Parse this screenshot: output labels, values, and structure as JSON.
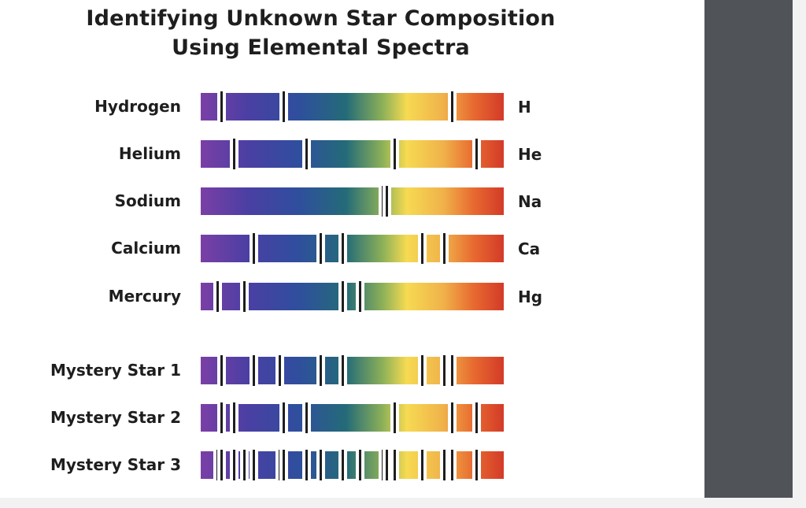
{
  "title_line1": "Identifying Unknown Star Composition",
  "title_line2": "Using Elemental Spectra",
  "elements": [
    {
      "name": "Hydrogen",
      "symbol": "H",
      "lines": [
        0.07,
        0.275,
        0.83
      ]
    },
    {
      "name": "Helium",
      "symbol": "He",
      "lines": [
        0.11,
        0.35,
        0.64,
        0.91
      ]
    },
    {
      "name": "Sodium",
      "symbol": "Na",
      "lines": [
        0.6,
        0.615
      ]
    },
    {
      "name": "Calcium",
      "symbol": "Ca",
      "lines": [
        0.175,
        0.395,
        0.47,
        0.73,
        0.805
      ]
    },
    {
      "name": "Mercury",
      "symbol": "Hg",
      "lines": [
        0.055,
        0.145,
        0.47,
        0.525
      ]
    }
  ],
  "stars": [
    {
      "name": "Mystery Star 1",
      "lines": [
        0.07,
        0.175,
        0.26,
        0.395,
        0.47,
        0.73,
        0.805,
        0.83
      ]
    },
    {
      "name": "Mystery Star 2",
      "lines": [
        0.07,
        0.11,
        0.275,
        0.35,
        0.64,
        0.83,
        0.91
      ]
    },
    {
      "name": "Mystery Star 3",
      "lines": [
        0.055,
        0.07,
        0.11,
        0.145,
        0.175,
        0.26,
        0.275,
        0.35,
        0.395,
        0.47,
        0.525,
        0.6,
        0.615,
        0.64,
        0.73,
        0.805,
        0.83,
        0.91
      ]
    }
  ]
}
